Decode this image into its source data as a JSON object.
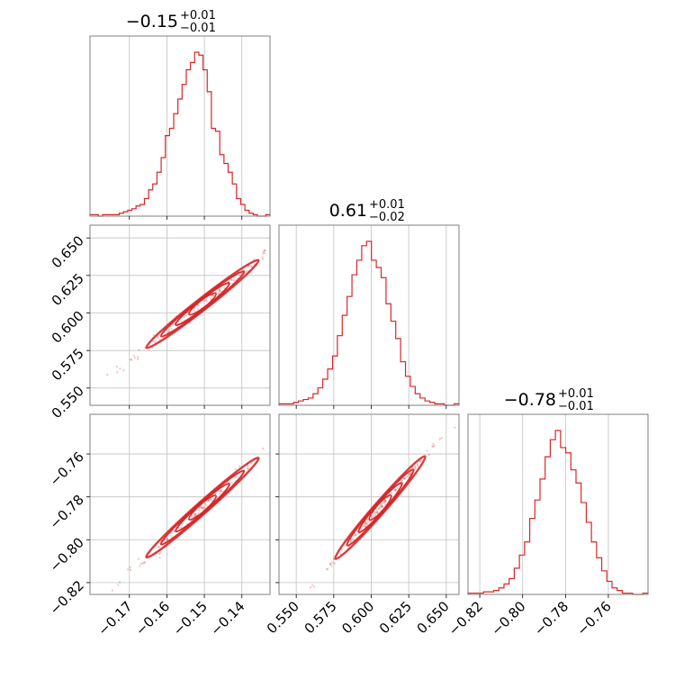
{
  "chart_data": {
    "type": "corner",
    "color": "#d62728",
    "parameters": [
      {
        "median": "−0.15",
        "plus": "+0.01",
        "minus": "−0.01",
        "range": [
          -0.1805,
          -0.1325
        ],
        "ticks": [
          {
            "value": -0.17,
            "label": "−0.17"
          },
          {
            "value": -0.16,
            "label": "−0.16"
          },
          {
            "value": -0.15,
            "label": "−0.15"
          },
          {
            "value": -0.14,
            "label": "−0.14"
          }
        ],
        "hist": [
          1,
          1,
          0,
          1,
          1,
          1,
          1,
          2,
          3,
          4,
          5,
          7,
          8,
          12,
          18,
          22,
          30,
          40,
          55,
          60,
          70,
          80,
          90,
          100,
          105,
          112,
          110,
          100,
          85,
          60,
          58,
          42,
          36,
          30,
          22,
          12,
          8,
          4,
          2,
          1,
          0,
          0,
          1
        ]
      },
      {
        "median": "0.61",
        "plus": "+0.01",
        "minus": "−0.02",
        "range": [
          0.5385,
          0.6585
        ],
        "ticks": [
          {
            "value": 0.55,
            "label": "0.550"
          },
          {
            "value": 0.575,
            "label": "0.575"
          },
          {
            "value": 0.6,
            "label": "0.600"
          },
          {
            "value": 0.625,
            "label": "0.625"
          },
          {
            "value": 0.65,
            "label": "0.650"
          }
        ],
        "hist": [
          1,
          1,
          1,
          2,
          3,
          4,
          5,
          8,
          12,
          18,
          25,
          34,
          48,
          62,
          75,
          90,
          100,
          110,
          113,
          100,
          95,
          88,
          70,
          58,
          46,
          30,
          20,
          13,
          8,
          5,
          3,
          2,
          1,
          1,
          0,
          0,
          1
        ]
      },
      {
        "median": "−0.78",
        "plus": "+0.01",
        "minus": "−0.01",
        "range": [
          -0.8255,
          -0.7415
        ],
        "ticks": [
          {
            "value": -0.82,
            "label": "−0.82"
          },
          {
            "value": -0.8,
            "label": "−0.80"
          },
          {
            "value": -0.78,
            "label": "−0.78"
          },
          {
            "value": -0.76,
            "label": "−0.76"
          }
        ],
        "hist": [
          1,
          1,
          1,
          2,
          2,
          3,
          5,
          8,
          12,
          20,
          30,
          40,
          58,
          72,
          88,
          105,
          118,
          125,
          112,
          108,
          95,
          85,
          70,
          55,
          40,
          28,
          18,
          10,
          5,
          3,
          1,
          1,
          0,
          0,
          1
        ]
      }
    ],
    "pairs": [
      {
        "x_param": 0,
        "y_param": 1,
        "slope": 1.95,
        "center": [
          -0.1505,
          0.606
        ],
        "sigma_x": 0.0065,
        "perp_sigma": 0.0018
      },
      {
        "x_param": 0,
        "y_param": 2,
        "slope": 1.55,
        "center": [
          -0.1505,
          -0.785
        ],
        "sigma_x": 0.0065,
        "perp_sigma": 0.0014
      },
      {
        "x_param": 1,
        "y_param": 2,
        "slope": 0.8,
        "center": [
          0.606,
          -0.785
        ],
        "sigma_x": 0.013,
        "perp_sigma": 0.0008
      }
    ],
    "grid": true
  }
}
